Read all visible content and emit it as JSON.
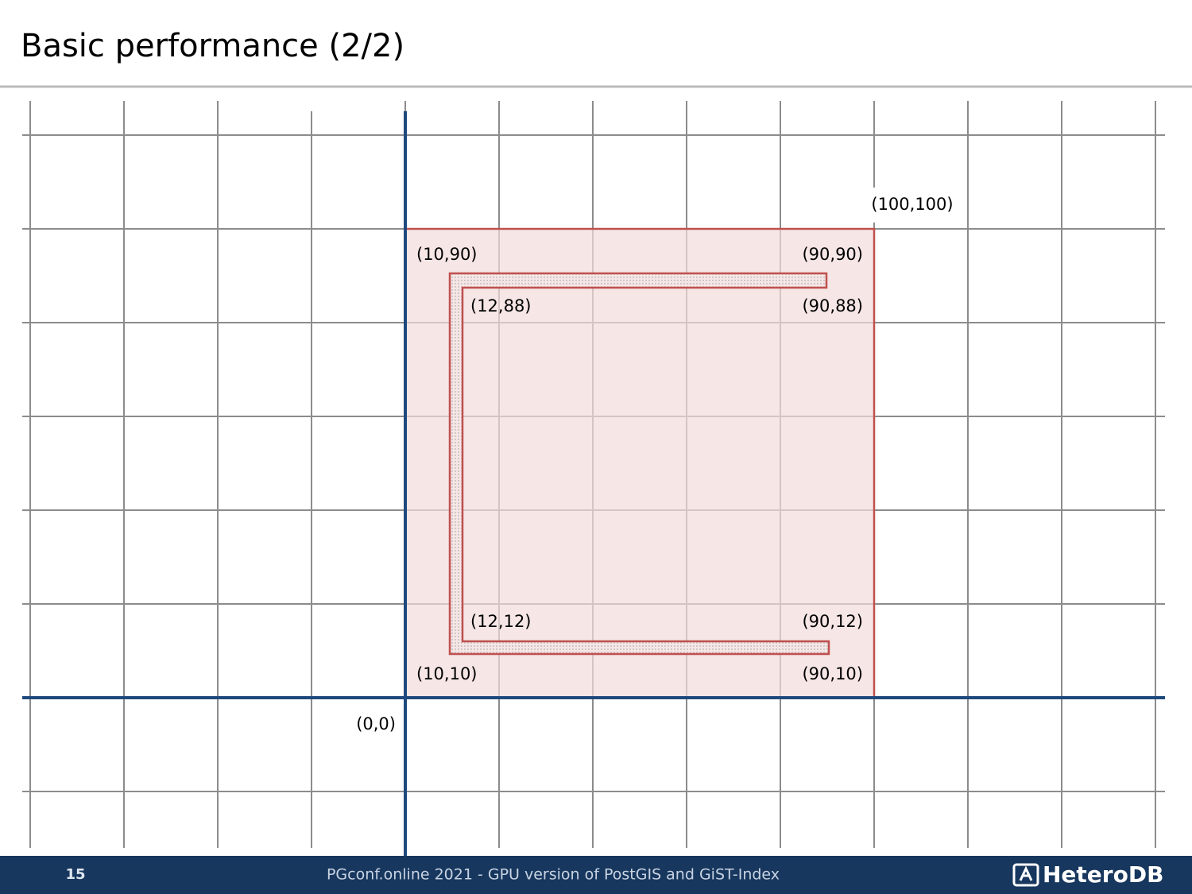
{
  "header": {
    "title": "Basic performance (2/2)"
  },
  "diagram": {
    "labels": {
      "corner_top_right": "(100,100)",
      "outer_top_left": "(10,90)",
      "outer_top_right": "(90,90)",
      "inner_top_left": "(12,88)",
      "inner_top_right": "(90,88)",
      "inner_bottom_left": "(12,12)",
      "inner_bottom_right": "(90,12)",
      "outer_bottom_left": "(10,10)",
      "outer_bottom_right": "(90,10)",
      "origin": "(0,0)"
    }
  },
  "footer": {
    "page": "15",
    "text": "PGconf.online 2021 - GPU version of PostGIS and GiST-Index",
    "logo": "HeteroDB"
  }
}
